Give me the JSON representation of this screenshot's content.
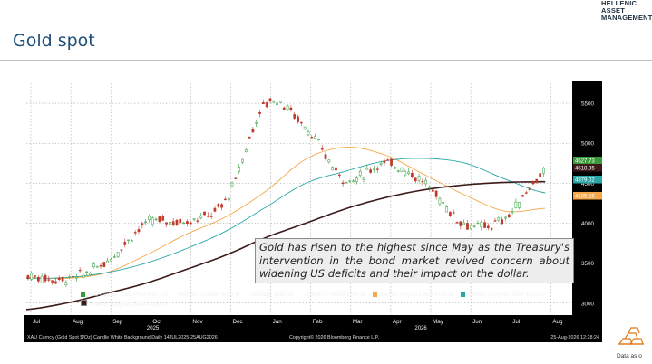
{
  "header": {
    "brand_line1": "HELLENIC",
    "brand_line2": "ASSET",
    "brand_line3": "MANAGEMENT",
    "page_title": "Gold spot"
  },
  "note": "Gold has risen to the highest since May as the Treasury's intervention in the bond market revived concern about widening US deficits and their impact on the dollar.",
  "legend": {
    "xau": "XAU Curncy - Last Price 4627.73",
    "high": "↑ High on 01/29/26 5595.47",
    "avg": "– Average 4262.50",
    "low": "↓ Low on 07/30/25 3268.18",
    "smavg50": "SMAVG (50) on Close 4185.26",
    "smavg100": "SMAVG (100) on Close 4379.02",
    "smavg200": "SMAVG (200) on Close 4518.85"
  },
  "footer": {
    "left": "XAU Curncy (Gold Spot $/Oz) Candle White Background Daily 14JUL2025-25AUG2026",
    "center": "Copyright© 2026 Bloomberg Finance L.P.",
    "right": "25-Aug-2026 12:28:24"
  },
  "as_of": "Data as o",
  "colors": {
    "up": "#2e9d3a",
    "down": "#c0392b",
    "sma50": "#f5a84b",
    "sma100": "#2aa6a6",
    "sma200": "#3d1a1a",
    "last_price": "#3a9a3a",
    "title": "#1f4e79"
  },
  "chart_data": {
    "type": "line",
    "title": "",
    "xlabel": "",
    "ylabel": "",
    "ylim": [
      2850,
      5750
    ],
    "yticks": [
      3000,
      3500,
      4000,
      4500,
      5000,
      5500
    ],
    "x_months": [
      "Jul",
      "Aug",
      "Sep",
      "Oct",
      "Nov",
      "Dec",
      "Jan",
      "Feb",
      "Mar",
      "Apr",
      "May",
      "Jun",
      "Jul",
      "Aug"
    ],
    "x_years": [
      "2025",
      "2026"
    ],
    "value_tags": [
      {
        "label": "4627.73",
        "series": "last"
      },
      {
        "label": "4518.85",
        "series": "sma200"
      },
      {
        "label": "4379.02",
        "series": "sma100"
      },
      {
        "label": "4185.26",
        "series": "sma50"
      }
    ],
    "series": [
      {
        "name": "XAU Curncy",
        "kind": "candle",
        "x": [
          "Jul",
          "Aug",
          "Sep",
          "Oct",
          "Nov",
          "Dec",
          "Jan",
          "Feb",
          "Mar",
          "Apr",
          "May",
          "Jun",
          "Jul",
          "Aug"
        ],
        "values": [
          3340,
          3300,
          3530,
          4000,
          4030,
          4300,
          5500,
          5200,
          4550,
          4750,
          4500,
          4000,
          4050,
          4627.73
        ]
      },
      {
        "name": "SMAVG (50)",
        "x": [
          "Jul",
          "Aug",
          "Sep",
          "Oct",
          "Nov",
          "Dec",
          "Jan",
          "Feb",
          "Mar",
          "Apr",
          "May",
          "Jun",
          "Jul",
          "Aug"
        ],
        "values": [
          3320,
          3310,
          3380,
          3600,
          3860,
          4080,
          4400,
          4800,
          4950,
          4850,
          4600,
          4350,
          4150,
          4185.26
        ]
      },
      {
        "name": "SMAVG (100)",
        "x": [
          "Jul",
          "Aug",
          "Sep",
          "Oct",
          "Nov",
          "Dec",
          "Jan",
          "Feb",
          "Mar",
          "Apr",
          "May",
          "Jun",
          "Jul",
          "Aug"
        ],
        "values": [
          3310,
          3320,
          3380,
          3500,
          3680,
          3900,
          4200,
          4500,
          4650,
          4780,
          4810,
          4750,
          4550,
          4379.02
        ]
      },
      {
        "name": "SMAVG (200)",
        "x": [
          "Jul",
          "Aug",
          "Sep",
          "Oct",
          "Nov",
          "Dec",
          "Jan",
          "Feb",
          "Mar",
          "Apr",
          "May",
          "Jun",
          "Jul",
          "Aug"
        ],
        "values": [
          2920,
          3000,
          3120,
          3250,
          3420,
          3600,
          3820,
          4000,
          4180,
          4320,
          4420,
          4480,
          4510,
          4518.85
        ]
      }
    ]
  }
}
